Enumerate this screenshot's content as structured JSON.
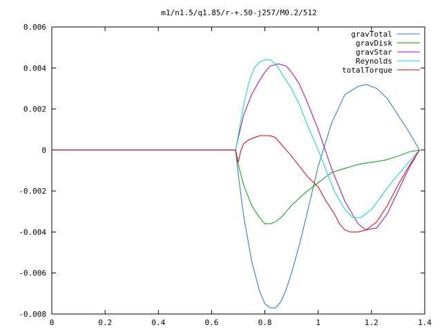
{
  "chart_data": {
    "type": "line",
    "title": "m1/n1.5/q1.85/r-+.50-j257/M0.2/512",
    "xlabel": "",
    "ylabel": "",
    "xlim": [
      0,
      1.4
    ],
    "ylim": [
      -0.008,
      0.006
    ],
    "xticks": [
      0,
      0.2,
      0.4,
      0.6,
      0.8,
      1,
      1.2,
      1.4
    ],
    "xtick_labels": [
      "0",
      "0.2",
      "0.4",
      "0.6",
      "0.8",
      "1",
      "1.2",
      "1.4"
    ],
    "yticks": [
      -0.008,
      -0.006,
      -0.004,
      -0.002,
      0,
      0.002,
      0.004,
      0.006
    ],
    "ytick_labels": [
      "-0.008",
      "-0.006",
      "-0.004",
      "-0.002",
      "0",
      "0.002",
      "0.004",
      "0.006"
    ],
    "grid": false,
    "legend_position": "top-right",
    "series": [
      {
        "name": "gravTotal",
        "color": "#1f6fcf",
        "x": [
          0,
          0.69,
          0.7,
          0.72,
          0.75,
          0.78,
          0.8,
          0.82,
          0.84,
          0.86,
          0.88,
          0.9,
          0.93,
          0.96,
          1.0,
          1.05,
          1.1,
          1.15,
          1.18,
          1.22,
          1.26,
          1.3,
          1.34,
          1.38
        ],
        "y": [
          0,
          0,
          -0.0012,
          -0.0032,
          -0.0054,
          -0.0069,
          -0.0075,
          -0.0077,
          -0.0077,
          -0.0074,
          -0.0068,
          -0.006,
          -0.0046,
          -0.003,
          -0.0008,
          0.0013,
          0.0027,
          0.0031,
          0.0032,
          0.003,
          0.0025,
          0.0017,
          0.0009,
          0
        ]
      },
      {
        "name": "gravDisk",
        "color": "#00a000",
        "x": [
          0,
          0.69,
          0.7,
          0.72,
          0.75,
          0.78,
          0.8,
          0.82,
          0.84,
          0.86,
          0.88,
          0.9,
          0.95,
          1.0,
          1.05,
          1.1,
          1.15,
          1.2,
          1.25,
          1.3,
          1.34,
          1.38
        ],
        "y": [
          0,
          0,
          -0.0007,
          -0.0017,
          -0.0027,
          -0.0033,
          -0.0036,
          -0.0036,
          -0.0035,
          -0.0033,
          -0.003,
          -0.0027,
          -0.0021,
          -0.0016,
          -0.0011,
          -0.0009,
          -0.0007,
          -0.0006,
          -0.0005,
          -0.0003,
          -0.0001,
          0
        ]
      },
      {
        "name": "gravStar",
        "color": "#a000c0",
        "x": [
          0,
          0.69,
          0.7,
          0.72,
          0.75,
          0.78,
          0.8,
          0.82,
          0.85,
          0.88,
          0.9,
          0.93,
          0.96,
          1.0,
          1.05,
          1.1,
          1.15,
          1.18,
          1.22,
          1.26,
          1.3,
          1.34,
          1.38
        ],
        "y": [
          0,
          0,
          0.0006,
          0.0017,
          0.0027,
          0.0034,
          0.0038,
          0.0041,
          0.0042,
          0.0041,
          0.0038,
          0.0032,
          0.0023,
          0.001,
          -0.0009,
          -0.0025,
          -0.0036,
          -0.0039,
          -0.0038,
          -0.0031,
          -0.002,
          -0.0009,
          0
        ]
      },
      {
        "name": "Reynolds",
        "color": "#00d8d8",
        "x": [
          0,
          0.69,
          0.7,
          0.72,
          0.74,
          0.76,
          0.78,
          0.8,
          0.82,
          0.84,
          0.86,
          0.88,
          0.9,
          0.93,
          0.96,
          1.0,
          1.03,
          1.06,
          1.1,
          1.13,
          1.16,
          1.2,
          1.24,
          1.28,
          1.32,
          1.36,
          1.38
        ],
        "y": [
          0,
          0,
          0.0007,
          0.0022,
          0.0033,
          0.004,
          0.0043,
          0.0044,
          0.0044,
          0.0042,
          0.0038,
          0.0034,
          0.003,
          0.0022,
          0.0012,
          0.0,
          -0.001,
          -0.002,
          -0.0029,
          -0.0033,
          -0.0033,
          -0.0029,
          -0.0022,
          -0.0015,
          -0.0009,
          -0.0003,
          0
        ]
      },
      {
        "name": "totalTorque",
        "color": "#e00000",
        "x": [
          0,
          0.69,
          0.7,
          0.71,
          0.72,
          0.74,
          0.76,
          0.78,
          0.8,
          0.82,
          0.84,
          0.86,
          0.88,
          0.9,
          0.93,
          0.96,
          1.0,
          1.03,
          1.06,
          1.08,
          1.1,
          1.12,
          1.15,
          1.18,
          1.22,
          1.26,
          1.3,
          1.34,
          1.38
        ],
        "y": [
          0,
          0,
          -0.0006,
          0.0,
          0.0003,
          0.0005,
          0.0006,
          0.0007,
          0.0007,
          0.0007,
          0.0006,
          0.0003,
          0.0,
          -0.0003,
          -0.0008,
          -0.0013,
          -0.0018,
          -0.0025,
          -0.0031,
          -0.0036,
          -0.0039,
          -0.004,
          -0.004,
          -0.0039,
          -0.0035,
          -0.0027,
          -0.0017,
          -0.0008,
          0
        ]
      }
    ]
  }
}
